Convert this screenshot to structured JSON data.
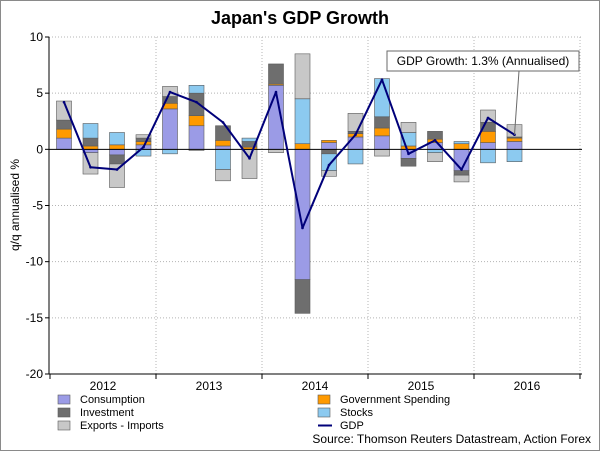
{
  "chart_data": {
    "type": "bar",
    "stacked": true,
    "title": "Japan's GDP Growth",
    "ylabel": "q/q annualised %",
    "xlabel": "",
    "ylim": [
      -20,
      10
    ],
    "yticks": [
      "10",
      "5",
      "0",
      "-5",
      "-10",
      "-15",
      "-20"
    ],
    "year_labels": [
      "2012",
      "2013",
      "2014",
      "2015",
      "2016"
    ],
    "quarters": [
      "2012 Q1",
      "2012 Q2",
      "2012 Q3",
      "2012 Q4",
      "2013 Q1",
      "2013 Q2",
      "2013 Q3",
      "2013 Q4",
      "2014 Q1",
      "2014 Q2",
      "2014 Q3",
      "2014 Q4",
      "2015 Q1",
      "2015 Q2",
      "2015 Q3",
      "2015 Q4",
      "2016 Q1",
      "2016 Q2"
    ],
    "series": [
      {
        "name": "Consumption",
        "color": "#9b9be6",
        "values": [
          1.0,
          -0.3,
          -0.5,
          0.4,
          3.6,
          2.1,
          0.3,
          0.0,
          5.7,
          -11.6,
          0.6,
          1.1,
          1.2,
          -0.8,
          0.6,
          -1.9,
          0.6,
          0.7
        ]
      },
      {
        "name": "Government Spending",
        "color": "#ff9a00",
        "values": [
          0.8,
          0.3,
          0.4,
          0.3,
          0.5,
          0.9,
          0.5,
          0.2,
          0.1,
          0.5,
          0.2,
          0.3,
          0.7,
          0.3,
          0.3,
          0.5,
          1.0,
          0.3
        ]
      },
      {
        "name": "Investment",
        "color": "#6e6e6e",
        "values": [
          0.8,
          0.7,
          -0.8,
          0.3,
          0.6,
          2.0,
          1.3,
          0.5,
          1.8,
          -3.0,
          -0.4,
          0.2,
          1.0,
          -0.7,
          0.7,
          -0.4,
          0.8,
          0.1
        ]
      },
      {
        "name": "Stocks",
        "color": "#8ccaf0",
        "values": [
          0.0,
          1.3,
          1.1,
          -0.6,
          -0.4,
          0.7,
          -1.8,
          0.3,
          0.0,
          4.0,
          -1.5,
          -1.3,
          3.4,
          1.2,
          -0.3,
          0.2,
          -1.2,
          -1.1
        ]
      },
      {
        "name": "Exports - Imports",
        "color": "#c8c8c8",
        "values": [
          1.7,
          -1.9,
          -2.1,
          0.3,
          0.9,
          -0.1,
          -1.0,
          -2.6,
          -0.3,
          4.0,
          -0.5,
          1.6,
          -0.6,
          0.9,
          -0.8,
          -0.6,
          1.1,
          1.1
        ]
      }
    ],
    "line": {
      "name": "GDP",
      "color": "#00007a",
      "values": [
        4.2,
        -1.6,
        -1.8,
        0.2,
        5.1,
        4.2,
        2.4,
        -0.8,
        5.1,
        -7.0,
        -1.4,
        1.3,
        6.2,
        -0.4,
        0.8,
        -1.8,
        2.8,
        1.3
      ]
    },
    "annotation": "GDP Growth: 1.3% (Annualised)",
    "legend_position": "bottom",
    "grid": true
  },
  "source": "Source: Thomson Reuters Datastream, Action Forex"
}
